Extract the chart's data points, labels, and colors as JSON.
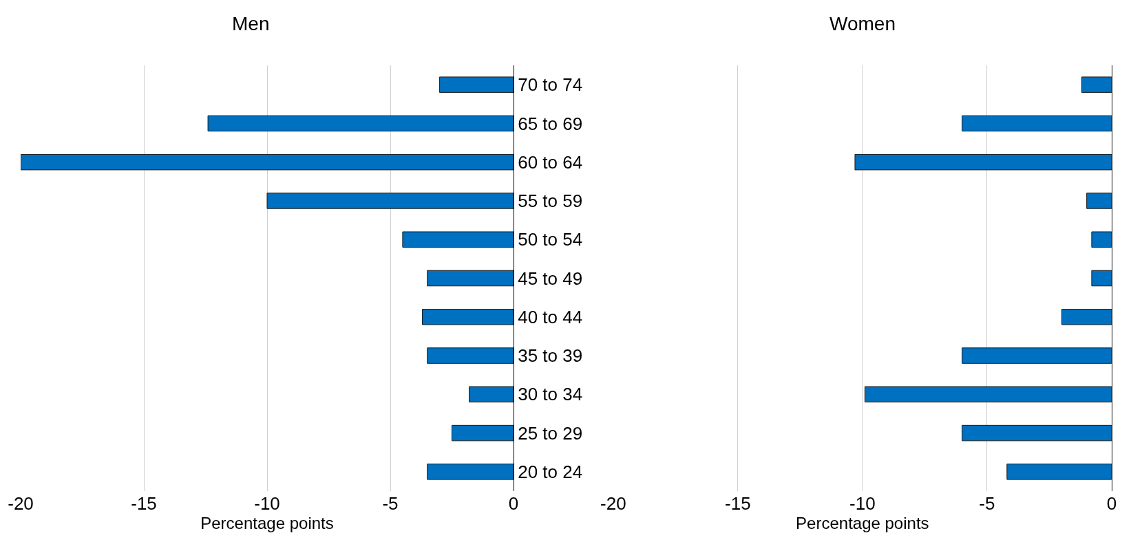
{
  "chart_data": [
    {
      "type": "bar",
      "orientation": "horizontal",
      "title": "Men",
      "xlabel": "Percentage points",
      "categories": [
        "70 to 74",
        "65 to 69",
        "60 to 64",
        "55 to 59",
        "50 to 54",
        "45 to 49",
        "40 to 44",
        "35 to 39",
        "30 to 34",
        "25 to 29",
        "20 to 24"
      ],
      "values": [
        -3.0,
        -12.4,
        -20.0,
        -10.0,
        -4.5,
        -3.5,
        -3.7,
        -3.5,
        -1.8,
        -2.5,
        -3.5
      ],
      "color": "#0070c0",
      "xlim": [
        -20,
        0
      ],
      "xticks": [
        -20,
        -15,
        -10,
        -5,
        0
      ],
      "grid": "x"
    },
    {
      "type": "bar",
      "orientation": "horizontal",
      "title": "Women",
      "xlabel": "Percentage points",
      "categories": [
        null,
        null,
        null,
        null,
        null,
        null,
        null,
        null,
        null,
        null,
        null
      ],
      "values": [
        -1.2,
        -6.0,
        -10.3,
        -1.0,
        -0.8,
        -0.8,
        -2.0,
        -6.0,
        -9.9,
        -6.0,
        -4.2
      ],
      "color": "#0070c0",
      "xlim": [
        -20,
        0
      ],
      "xticks": [
        -20,
        -15,
        -10,
        -5,
        0
      ],
      "grid": "x",
      "tick_labels": "x"
    }
  ]
}
